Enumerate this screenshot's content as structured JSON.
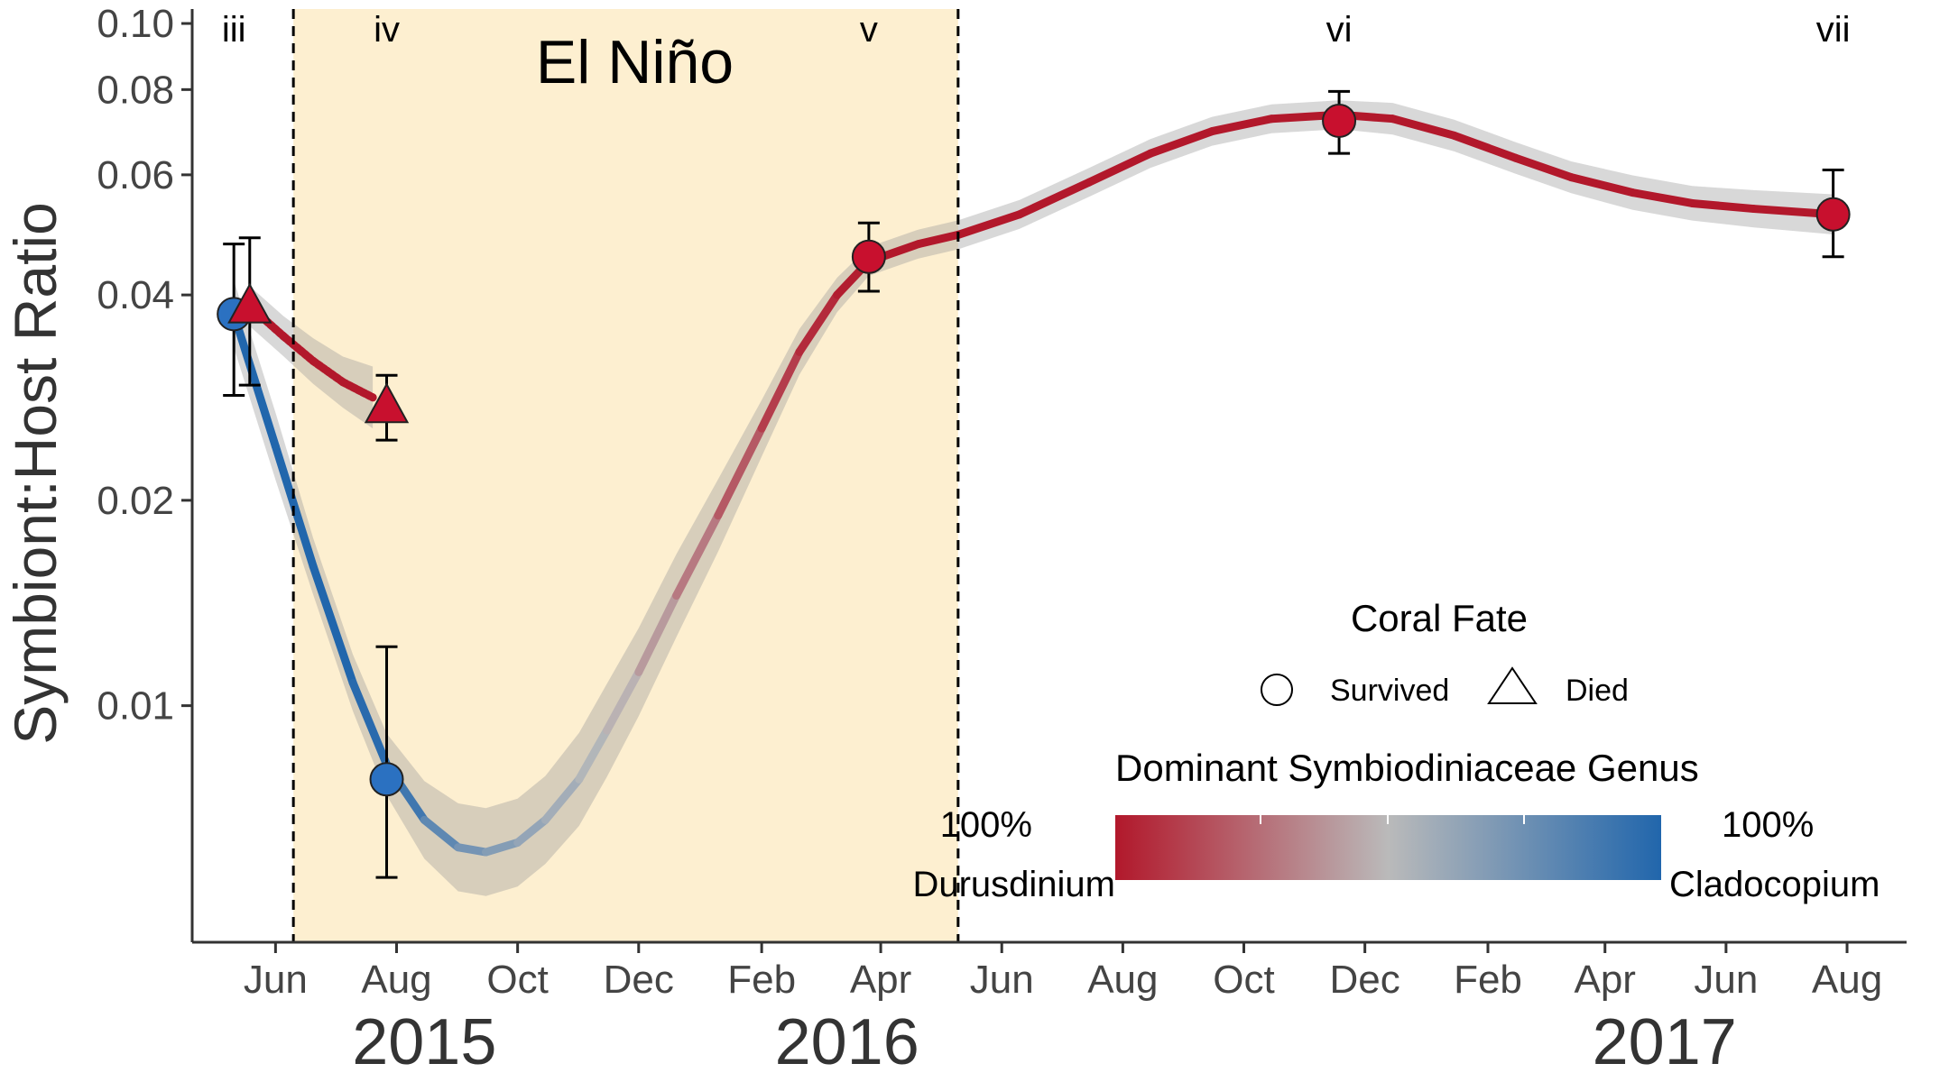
{
  "chart_data": {
    "type": "line",
    "title": "",
    "ylabel": "Symbiont:Host Ratio",
    "xlabel": "",
    "y_scale": "log",
    "ylim": [
      0.0045,
      0.105
    ],
    "xlim": [
      "2015-04-20",
      "2017-08-31"
    ],
    "y_ticks": [
      {
        "value": 0.01,
        "label": "0.01"
      },
      {
        "value": 0.02,
        "label": "0.02"
      },
      {
        "value": 0.04,
        "label": "0.04"
      },
      {
        "value": 0.06,
        "label": "0.06"
      },
      {
        "value": 0.08,
        "label": "0.08"
      },
      {
        "value": 0.1,
        "label": "0.10"
      }
    ],
    "x_ticks": [
      {
        "date": "2015-06-01",
        "label": "Jun"
      },
      {
        "date": "2015-08-01",
        "label": "Aug"
      },
      {
        "date": "2015-10-01",
        "label": "Oct"
      },
      {
        "date": "2015-12-01",
        "label": "Dec"
      },
      {
        "date": "2016-02-01",
        "label": "Feb"
      },
      {
        "date": "2016-04-01",
        "label": "Apr"
      },
      {
        "date": "2016-06-01",
        "label": "Jun"
      },
      {
        "date": "2016-08-01",
        "label": "Aug"
      },
      {
        "date": "2016-10-01",
        "label": "Oct"
      },
      {
        "date": "2016-12-01",
        "label": "Dec"
      },
      {
        "date": "2017-02-01",
        "label": "Feb"
      },
      {
        "date": "2017-04-01",
        "label": "Apr"
      },
      {
        "date": "2017-06-01",
        "label": "Jun"
      },
      {
        "date": "2017-08-01",
        "label": "Aug"
      }
    ],
    "year_labels": [
      {
        "date": "2015-08-15",
        "label": "2015"
      },
      {
        "date": "2016-03-15",
        "label": "2016"
      },
      {
        "date": "2017-05-01",
        "label": "2017"
      }
    ],
    "shaded_period": {
      "start": "2015-06-10",
      "end": "2016-05-10",
      "label": "El Niño",
      "color": "#fdefd0"
    },
    "phase_labels": [
      {
        "date": "2015-05-11",
        "label": "iii"
      },
      {
        "date": "2015-07-27",
        "label": "iv"
      },
      {
        "date": "2016-03-26",
        "label": "v"
      },
      {
        "date": "2016-11-18",
        "label": "vi"
      },
      {
        "date": "2017-07-25",
        "label": "vii"
      }
    ],
    "series": [
      {
        "name": "Survived",
        "marker": "circle",
        "points": [
          {
            "date": "2015-05-11",
            "y": 0.0375,
            "ylow": 0.0285,
            "yhigh": 0.0475,
            "genus": 1.0
          },
          {
            "date": "2015-07-27",
            "y": 0.0078,
            "ylow": 0.0056,
            "yhigh": 0.0122,
            "genus": 1.0
          },
          {
            "date": "2016-03-26",
            "y": 0.0455,
            "ylow": 0.0405,
            "yhigh": 0.051,
            "genus": 0.0
          },
          {
            "date": "2016-11-18",
            "y": 0.072,
            "ylow": 0.0645,
            "yhigh": 0.0795,
            "genus": 0.0
          },
          {
            "date": "2017-07-25",
            "y": 0.0525,
            "ylow": 0.0455,
            "yhigh": 0.061,
            "genus": 0.0
          }
        ],
        "smooth": [
          {
            "date": "2015-05-11",
            "y": 0.0375,
            "se": 0.12,
            "genus": 1.0
          },
          {
            "date": "2015-06-01",
            "y": 0.024,
            "se": 0.12,
            "genus": 1.0
          },
          {
            "date": "2015-06-20",
            "y": 0.016,
            "se": 0.1,
            "genus": 1.0
          },
          {
            "date": "2015-07-10",
            "y": 0.0108,
            "se": 0.1,
            "genus": 1.0
          },
          {
            "date": "2015-07-27",
            "y": 0.0082,
            "se": 0.11,
            "genus": 0.95
          },
          {
            "date": "2015-08-15",
            "y": 0.0068,
            "se": 0.14,
            "genus": 0.85
          },
          {
            "date": "2015-09-01",
            "y": 0.0062,
            "se": 0.16,
            "genus": 0.75
          },
          {
            "date": "2015-09-15",
            "y": 0.0061,
            "se": 0.16,
            "genus": 0.7
          },
          {
            "date": "2015-10-01",
            "y": 0.0063,
            "se": 0.16,
            "genus": 0.65
          },
          {
            "date": "2015-10-15",
            "y": 0.0068,
            "se": 0.16,
            "genus": 0.6
          },
          {
            "date": "2015-11-01",
            "y": 0.0078,
            "se": 0.17,
            "genus": 0.55
          },
          {
            "date": "2015-11-15",
            "y": 0.0092,
            "se": 0.17,
            "genus": 0.5
          },
          {
            "date": "2015-12-01",
            "y": 0.0112,
            "se": 0.16,
            "genus": 0.45
          },
          {
            "date": "2015-12-20",
            "y": 0.0145,
            "se": 0.15,
            "genus": 0.35
          },
          {
            "date": "2016-01-10",
            "y": 0.019,
            "se": 0.13,
            "genus": 0.25
          },
          {
            "date": "2016-02-01",
            "y": 0.0255,
            "se": 0.1,
            "genus": 0.15
          },
          {
            "date": "2016-02-20",
            "y": 0.033,
            "se": 0.08,
            "genus": 0.08
          },
          {
            "date": "2016-03-10",
            "y": 0.04,
            "se": 0.06,
            "genus": 0.03
          },
          {
            "date": "2016-03-26",
            "y": 0.0448,
            "se": 0.05,
            "genus": 0.0
          },
          {
            "date": "2016-04-20",
            "y": 0.0475,
            "se": 0.05,
            "genus": 0.0
          },
          {
            "date": "2016-05-10",
            "y": 0.049,
            "se": 0.05,
            "genus": 0.0
          },
          {
            "date": "2016-06-10",
            "y": 0.0525,
            "se": 0.05,
            "genus": 0.0
          },
          {
            "date": "2016-07-15",
            "y": 0.0585,
            "se": 0.05,
            "genus": 0.0
          },
          {
            "date": "2016-08-15",
            "y": 0.0645,
            "se": 0.05,
            "genus": 0.0
          },
          {
            "date": "2016-09-15",
            "y": 0.0695,
            "se": 0.05,
            "genus": 0.0
          },
          {
            "date": "2016-10-15",
            "y": 0.0725,
            "se": 0.05,
            "genus": 0.0
          },
          {
            "date": "2016-11-18",
            "y": 0.0735,
            "se": 0.05,
            "genus": 0.0
          },
          {
            "date": "2016-12-15",
            "y": 0.0725,
            "se": 0.055,
            "genus": 0.0
          },
          {
            "date": "2017-01-15",
            "y": 0.0685,
            "se": 0.055,
            "genus": 0.0
          },
          {
            "date": "2017-02-15",
            "y": 0.0635,
            "se": 0.055,
            "genus": 0.0
          },
          {
            "date": "2017-03-15",
            "y": 0.0595,
            "se": 0.055,
            "genus": 0.0
          },
          {
            "date": "2017-04-15",
            "y": 0.0565,
            "se": 0.06,
            "genus": 0.0
          },
          {
            "date": "2017-05-15",
            "y": 0.0545,
            "se": 0.06,
            "genus": 0.0
          },
          {
            "date": "2017-06-15",
            "y": 0.0535,
            "se": 0.065,
            "genus": 0.0
          },
          {
            "date": "2017-07-25",
            "y": 0.0525,
            "se": 0.07,
            "genus": 0.0
          }
        ]
      },
      {
        "name": "Died",
        "marker": "triangle",
        "points": [
          {
            "date": "2015-05-19",
            "y": 0.0385,
            "ylow": 0.0295,
            "yhigh": 0.0485,
            "genus": 0.0
          },
          {
            "date": "2015-07-27",
            "y": 0.0275,
            "ylow": 0.0245,
            "yhigh": 0.0305,
            "genus": 0.0
          }
        ],
        "smooth": [
          {
            "date": "2015-05-19",
            "y": 0.0385,
            "se": 0.07,
            "genus": 0.0
          },
          {
            "date": "2015-06-05",
            "y": 0.0348,
            "se": 0.07,
            "genus": 0.0
          },
          {
            "date": "2015-06-20",
            "y": 0.032,
            "se": 0.08,
            "genus": 0.0
          },
          {
            "date": "2015-07-05",
            "y": 0.0298,
            "se": 0.09,
            "genus": 0.0
          },
          {
            "date": "2015-07-20",
            "y": 0.0283,
            "se": 0.11,
            "genus": 0.0
          }
        ]
      }
    ],
    "colors": {
      "durusdinium": "#b2182b",
      "mid": "#bababa",
      "cladocopium": "#2166ac",
      "ribbon": "#999999",
      "point_red": "#c8102e",
      "point_blue": "#2b71c1"
    },
    "legend": {
      "fate_title": "Coral Fate",
      "fate_items": [
        "Survived",
        "Died"
      ],
      "genus_title": "Dominant Symbiodiniaceae Genus",
      "genus_left_pct": "100%",
      "genus_left_name": "Durusdinium",
      "genus_right_pct": "100%",
      "genus_right_name": "Cladocopium",
      "placement": "bottom-right"
    },
    "grid": false
  }
}
